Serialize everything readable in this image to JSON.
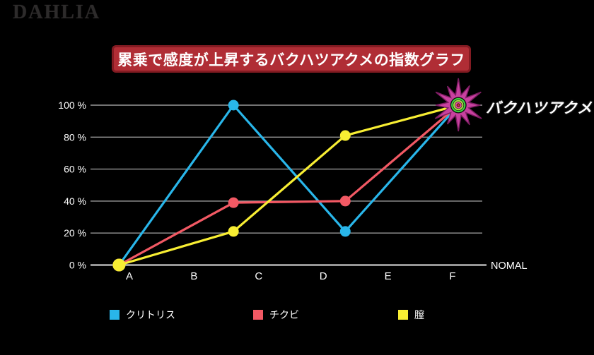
{
  "logo": {
    "text": "DAHLIA",
    "color": "#2d2b2b"
  },
  "banner": {
    "text": "累乗で感度が上昇するバクハツアクメの指数グラフ",
    "bg": "#b02d35",
    "border_color": "#831b22",
    "text_color": "#ffffff"
  },
  "annotation": {
    "text": "バクハツアクメ",
    "color": "#ffffff"
  },
  "burst": {
    "star_color": "#c8419f",
    "star_stroke": "#7e1d63",
    "core_bg": "#111111",
    "ring_colors": [
      "#3ed43e",
      "#a8dd44",
      "#f0509d"
    ],
    "center_color": "#cc3333"
  },
  "chart_data": {
    "type": "line",
    "title": "累乗で感度が上昇するバクハツアクメの指数グラフ",
    "categories": [
      "A",
      "B",
      "C",
      "D",
      "E",
      "F"
    ],
    "x_axis_end_label": "NOMAL",
    "ylim": [
      0,
      100
    ],
    "grid": true,
    "legend_position": "bottom",
    "grid_color": "#999999",
    "axis_color": "#e8e8e8",
    "tick_color": "#ffffff",
    "y_ticks": [
      {
        "label": "100 %",
        "value": 100
      },
      {
        "label": "80 %",
        "value": 80
      },
      {
        "label": "60 %",
        "value": 60
      },
      {
        "label": "40 %",
        "value": 40
      },
      {
        "label": "20 %",
        "value": 20
      },
      {
        "label": "0 %",
        "value": 0
      }
    ],
    "series": [
      {
        "name": "クリトリス",
        "color": "#29b6ea",
        "points": [
          {
            "x": -0.16,
            "y": 0
          },
          {
            "x": 1.61,
            "y": 100
          },
          {
            "x": 3.34,
            "y": 21
          },
          {
            "x": 5.09,
            "y": 100
          }
        ]
      },
      {
        "name": "チクビ",
        "color": "#f25964",
        "points": [
          {
            "x": -0.16,
            "y": 0
          },
          {
            "x": 1.61,
            "y": 39
          },
          {
            "x": 3.34,
            "y": 40
          },
          {
            "x": 5.09,
            "y": 100
          }
        ]
      },
      {
        "name": "膣",
        "color": "#f8ee33",
        "points": [
          {
            "x": -0.16,
            "y": 0
          },
          {
            "x": 1.61,
            "y": 21
          },
          {
            "x": 3.34,
            "y": 81
          },
          {
            "x": 5.09,
            "y": 100
          }
        ]
      }
    ]
  },
  "legend": {
    "items": [
      {
        "label": "クリトリス",
        "color": "#29b6ea"
      },
      {
        "label": "チクビ",
        "color": "#f25964"
      },
      {
        "label": "膣",
        "color": "#f8ee33"
      }
    ]
  }
}
